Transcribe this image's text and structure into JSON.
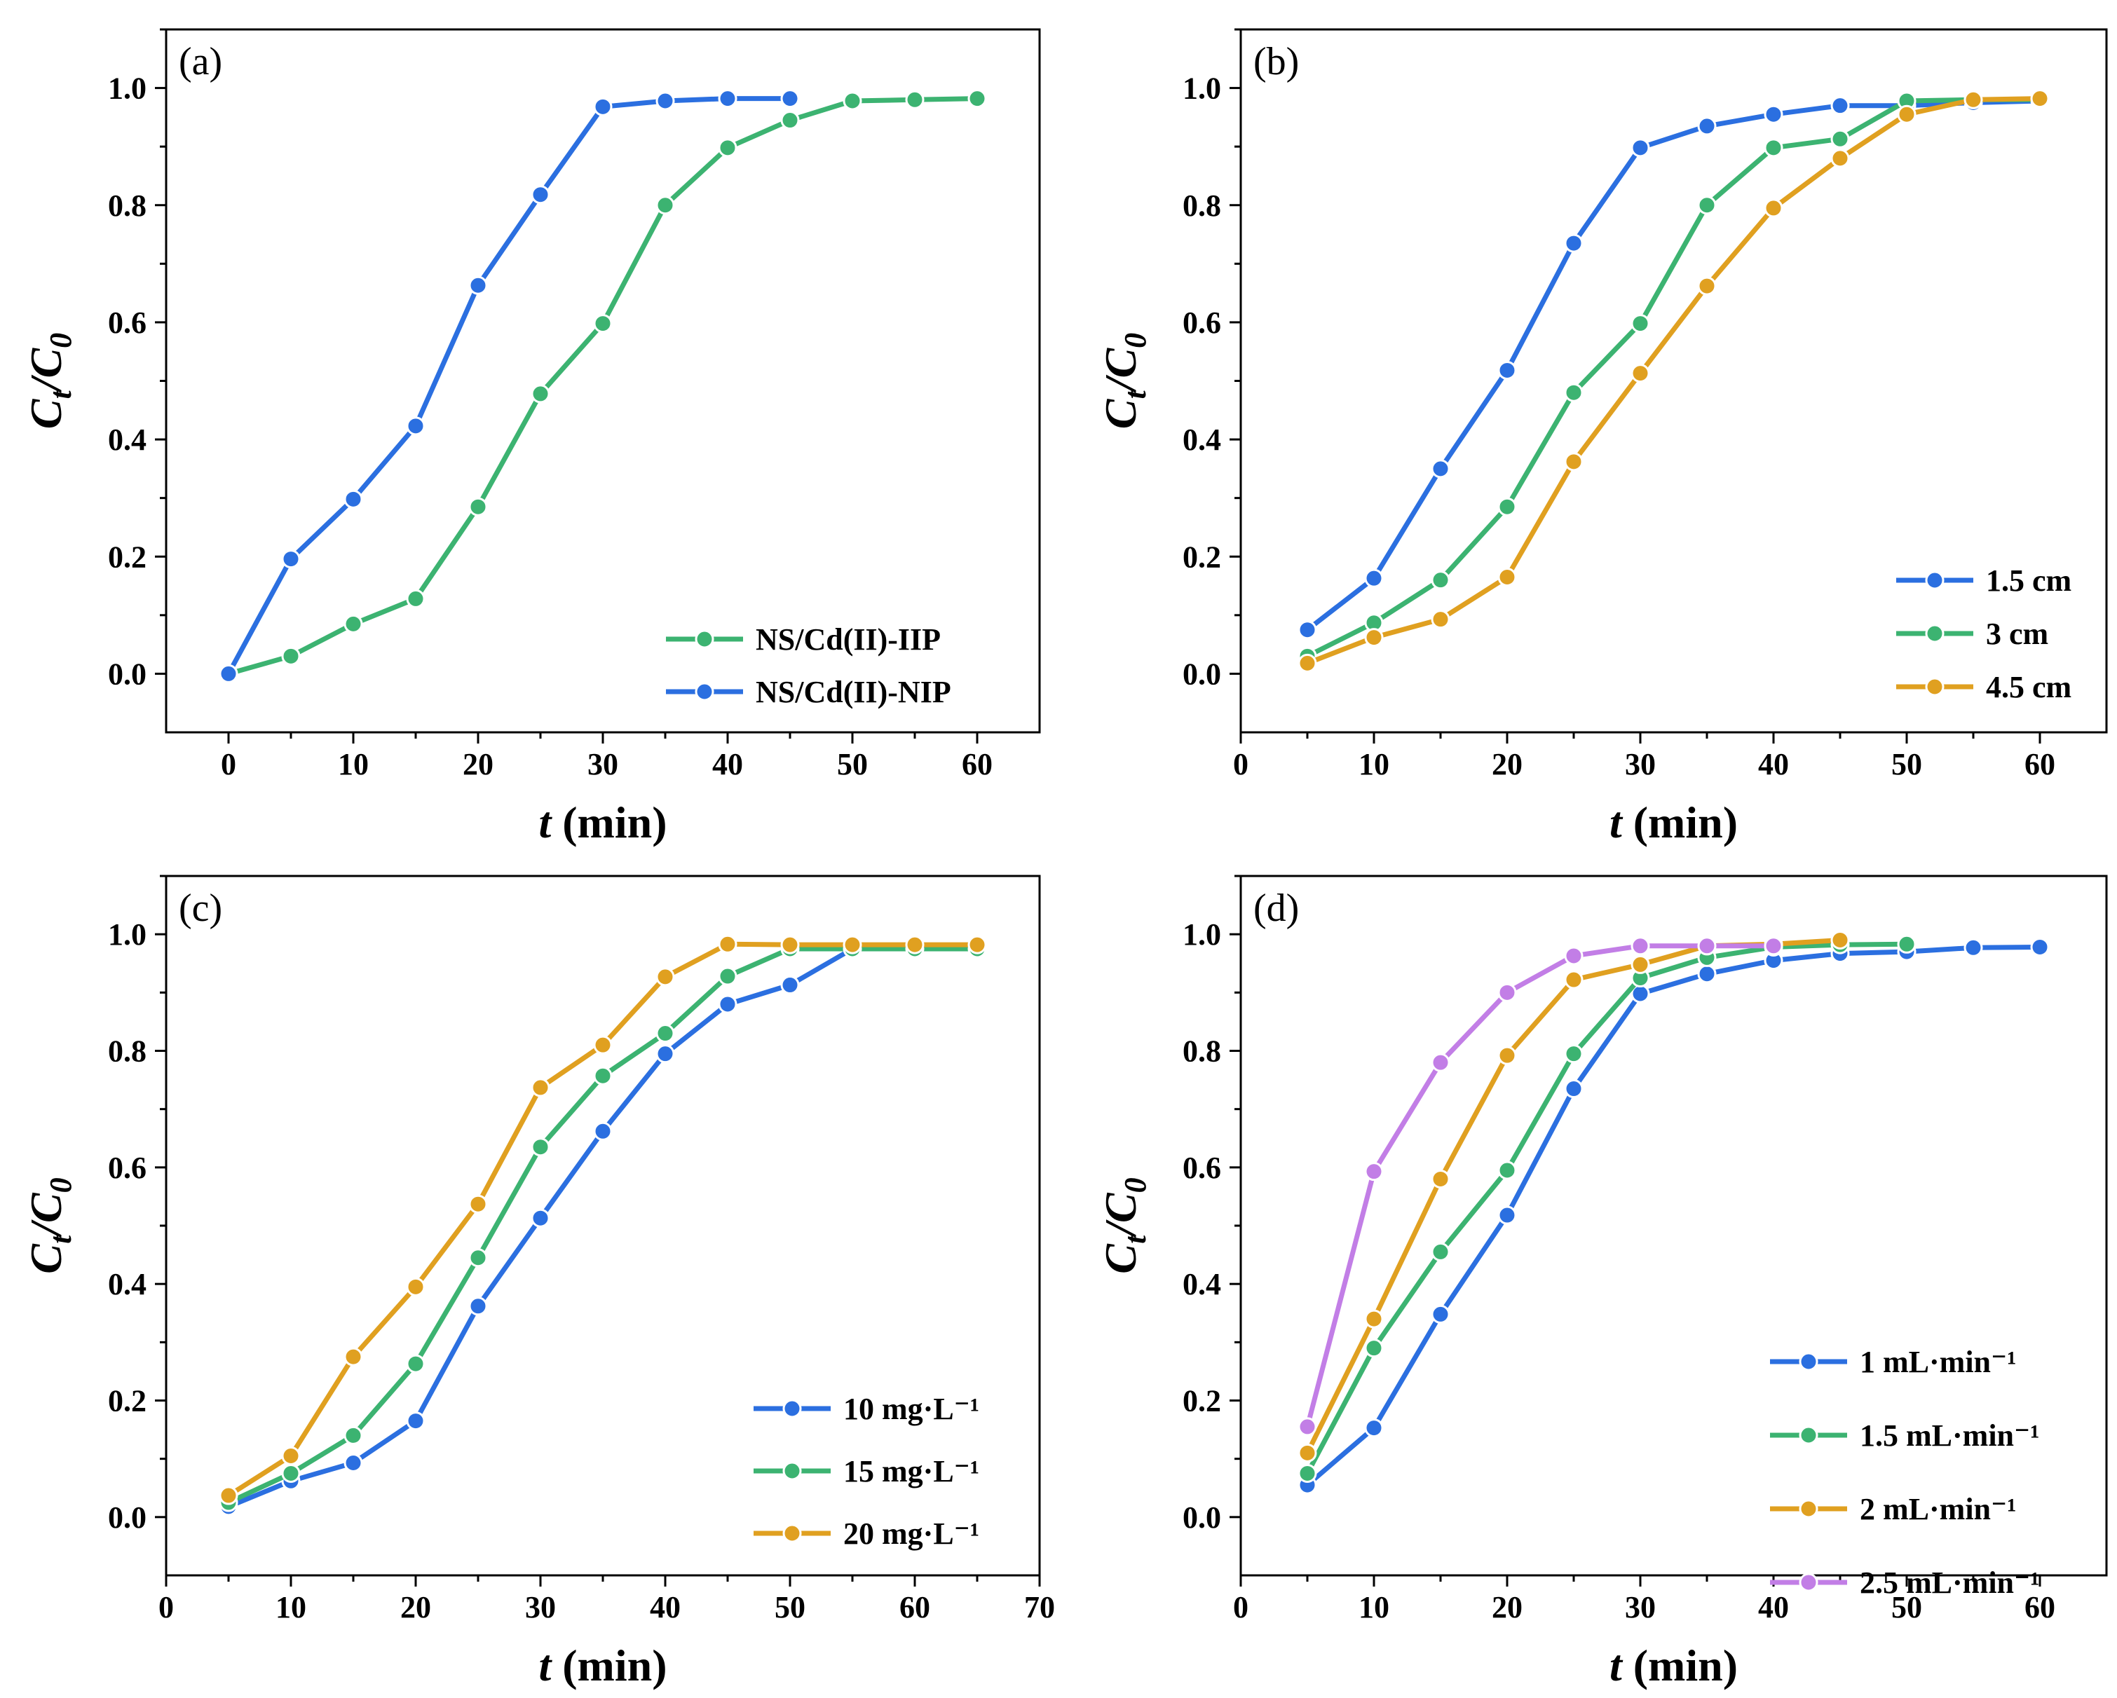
{
  "chart_data": [
    {
      "panel_label": "(a)",
      "type": "line",
      "xlabel_italic": "t",
      "xlabel_rest": " (min)",
      "ylabel": "Ct/C0",
      "xlim": [
        -5,
        65
      ],
      "ylim": [
        -0.1,
        1.1
      ],
      "xticks": [
        0,
        10,
        20,
        30,
        40,
        50,
        60
      ],
      "yticks": [
        0.0,
        0.2,
        0.4,
        0.6,
        0.8,
        1.0
      ],
      "legend_position": "bottom-right",
      "series": [
        {
          "name": "NS/Cd(II)-IIP",
          "color": "#3cb371",
          "x": [
            0,
            5,
            10,
            15,
            20,
            25,
            30,
            35,
            40,
            45,
            50,
            55,
            60
          ],
          "y": [
            0.0,
            0.03,
            0.085,
            0.128,
            0.285,
            0.478,
            0.598,
            0.8,
            0.898,
            0.945,
            0.978,
            0.98,
            0.982
          ]
        },
        {
          "name": "NS/Cd(II)-NIP",
          "color": "#2b6fe0",
          "x": [
            0,
            5,
            10,
            15,
            20,
            25,
            30,
            35,
            40,
            45
          ],
          "y": [
            0.0,
            0.196,
            0.298,
            0.423,
            0.663,
            0.818,
            0.968,
            0.978,
            0.982,
            0.982
          ]
        }
      ]
    },
    {
      "panel_label": "(b)",
      "type": "line",
      "xlabel_italic": "t",
      "xlabel_rest": " (min)",
      "ylabel": "Ct/C0",
      "xlim": [
        0,
        65
      ],
      "ylim": [
        -0.1,
        1.1
      ],
      "xticks": [
        0,
        10,
        20,
        30,
        40,
        50,
        60
      ],
      "yticks": [
        0.0,
        0.2,
        0.4,
        0.6,
        0.8,
        1.0
      ],
      "legend_position": "bottom-right",
      "series": [
        {
          "name": "1.5 cm",
          "color": "#2b6fe0",
          "x": [
            5,
            10,
            15,
            20,
            25,
            30,
            35,
            40,
            45,
            50,
            55,
            60
          ],
          "y": [
            0.075,
            0.163,
            0.35,
            0.518,
            0.735,
            0.898,
            0.935,
            0.955,
            0.97,
            0.97,
            0.975,
            0.978
          ]
        },
        {
          "name": "3 cm",
          "color": "#3cb371",
          "x": [
            5,
            10,
            15,
            20,
            25,
            30,
            35,
            40,
            45,
            50,
            55,
            60
          ],
          "y": [
            0.03,
            0.087,
            0.16,
            0.285,
            0.48,
            0.598,
            0.8,
            0.898,
            0.913,
            0.978,
            0.98,
            0.98
          ]
        },
        {
          "name": "4.5 cm",
          "color": "#e0a020",
          "x": [
            5,
            10,
            15,
            20,
            25,
            30,
            35,
            40,
            45,
            50,
            55,
            60
          ],
          "y": [
            0.018,
            0.062,
            0.093,
            0.165,
            0.362,
            0.513,
            0.662,
            0.795,
            0.88,
            0.955,
            0.98,
            0.982
          ]
        }
      ]
    },
    {
      "panel_label": "(c)",
      "type": "line",
      "xlabel_italic": "t",
      "xlabel_rest": " (min)",
      "ylabel": "Ct/C0",
      "xlim": [
        0,
        70
      ],
      "ylim": [
        -0.1,
        1.1
      ],
      "xticks": [
        0,
        10,
        20,
        30,
        40,
        50,
        60,
        70
      ],
      "yticks": [
        0.0,
        0.2,
        0.4,
        0.6,
        0.8,
        1.0
      ],
      "legend_position": "bottom-right",
      "series": [
        {
          "name": "10 mg·L⁻¹",
          "color": "#2b6fe0",
          "x": [
            5,
            10,
            15,
            20,
            25,
            30,
            35,
            40,
            45,
            50,
            55,
            60,
            65
          ],
          "y": [
            0.018,
            0.062,
            0.093,
            0.165,
            0.362,
            0.513,
            0.662,
            0.795,
            0.88,
            0.913,
            0.975,
            0.978,
            0.98
          ]
        },
        {
          "name": "15 mg·L⁻¹",
          "color": "#3cb371",
          "x": [
            5,
            10,
            15,
            20,
            25,
            30,
            35,
            40,
            45,
            50,
            55,
            60,
            65
          ],
          "y": [
            0.025,
            0.075,
            0.14,
            0.263,
            0.445,
            0.635,
            0.757,
            0.83,
            0.928,
            0.975,
            0.975,
            0.975,
            0.975
          ]
        },
        {
          "name": "20 mg·L⁻¹",
          "color": "#e0a020",
          "x": [
            5,
            10,
            15,
            20,
            25,
            30,
            35,
            40,
            45,
            50,
            55,
            60,
            65
          ],
          "y": [
            0.037,
            0.105,
            0.275,
            0.395,
            0.537,
            0.737,
            0.81,
            0.927,
            0.983,
            0.982,
            0.982,
            0.982,
            0.982
          ]
        }
      ]
    },
    {
      "panel_label": "(d)",
      "type": "line",
      "xlabel_italic": "t",
      "xlabel_rest": " (min)",
      "ylabel": "Ct/C0",
      "xlim": [
        0,
        65
      ],
      "ylim": [
        -0.1,
        1.1
      ],
      "xticks": [
        0,
        10,
        20,
        30,
        40,
        50,
        60
      ],
      "yticks": [
        0.0,
        0.2,
        0.4,
        0.6,
        0.8,
        1.0
      ],
      "legend_position": "bottom-right",
      "series": [
        {
          "name": "1 mL·min⁻¹",
          "color": "#2b6fe0",
          "x": [
            5,
            10,
            15,
            20,
            25,
            30,
            35,
            40,
            45,
            50,
            55,
            60
          ],
          "y": [
            0.055,
            0.153,
            0.348,
            0.518,
            0.735,
            0.898,
            0.932,
            0.955,
            0.967,
            0.97,
            0.977,
            0.978
          ]
        },
        {
          "name": "1.5 mL·min⁻¹",
          "color": "#3cb371",
          "x": [
            5,
            10,
            15,
            20,
            25,
            30,
            35,
            40,
            45,
            50
          ],
          "y": [
            0.075,
            0.29,
            0.455,
            0.595,
            0.795,
            0.925,
            0.96,
            0.978,
            0.982,
            0.983
          ]
        },
        {
          "name": "2 mL·min⁻¹",
          "color": "#e0a020",
          "x": [
            5,
            10,
            15,
            20,
            25,
            30,
            35,
            40,
            45
          ],
          "y": [
            0.11,
            0.34,
            0.58,
            0.792,
            0.922,
            0.948,
            0.98,
            0.983,
            0.99
          ]
        },
        {
          "name": "2.5 mL·min⁻¹",
          "color": "#c27ee6",
          "x": [
            5,
            10,
            15,
            20,
            25,
            30,
            35,
            40
          ],
          "y": [
            0.155,
            0.593,
            0.78,
            0.9,
            0.963,
            0.98,
            0.98,
            0.98
          ]
        }
      ]
    }
  ]
}
